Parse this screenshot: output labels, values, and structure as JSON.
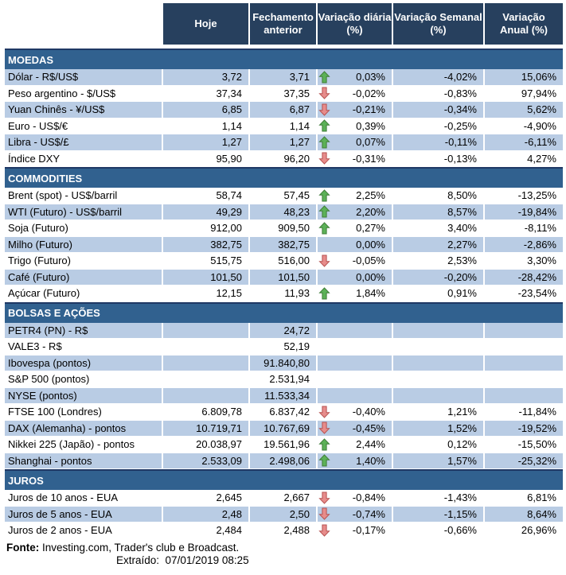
{
  "table": {
    "columns": [
      "Hoje",
      "Fechamento\nanterior",
      "Variação diária\n(%)",
      "Variação Semanal\n(%)",
      "Variação\nAnual (%)"
    ]
  },
  "sections": [
    {
      "title": "MOEDAS",
      "zebra": 0,
      "rows": [
        {
          "label": "Dólar - R$/US$",
          "hoje": "3,72",
          "fechamento": "3,71",
          "arrow": "up",
          "diaria": "0,03%",
          "semanal": "-4,02%",
          "anual": "15,06%"
        },
        {
          "label": "Peso argentino - $/US$",
          "hoje": "37,34",
          "fechamento": "37,35",
          "arrow": "down",
          "diaria": "-0,02%",
          "semanal": "-0,83%",
          "anual": "97,94%"
        },
        {
          "label": "Yuan Chinês - ¥/US$",
          "hoje": "6,85",
          "fechamento": "6,87",
          "arrow": "down",
          "diaria": "-0,21%",
          "semanal": "-0,34%",
          "anual": "5,62%"
        },
        {
          "label": "Euro - US$/€",
          "hoje": "1,14",
          "fechamento": "1,14",
          "arrow": "up",
          "diaria": "0,39%",
          "semanal": "-0,25%",
          "anual": "-4,90%"
        },
        {
          "label": "Libra - US$/£",
          "hoje": "1,27",
          "fechamento": "1,27",
          "arrow": "up",
          "diaria": "0,07%",
          "semanal": "-0,11%",
          "anual": "-6,11%"
        },
        {
          "label": "Índice DXY",
          "hoje": "95,90",
          "fechamento": "96,20",
          "arrow": "down",
          "diaria": "-0,31%",
          "semanal": "-0,13%",
          "anual": "4,27%"
        }
      ]
    },
    {
      "title": "COMMODITIES",
      "zebra": 1,
      "rows": [
        {
          "label": "Brent (spot) - US$/barril",
          "hoje": "58,74",
          "fechamento": "57,45",
          "arrow": "up",
          "diaria": "2,25%",
          "semanal": "8,50%",
          "anual": "-13,25%"
        },
        {
          "label": "WTI (Futuro) - US$/barril",
          "hoje": "49,29",
          "fechamento": "48,23",
          "arrow": "up",
          "diaria": "2,20%",
          "semanal": "8,57%",
          "anual": "-19,84%"
        },
        {
          "label": "Soja (Futuro)",
          "hoje": "912,00",
          "fechamento": "909,50",
          "arrow": "up",
          "diaria": "0,27%",
          "semanal": "3,40%",
          "anual": "-8,11%"
        },
        {
          "label": "Milho (Futuro)",
          "hoje": "382,75",
          "fechamento": "382,75",
          "arrow": "",
          "diaria": "0,00%",
          "semanal": "2,27%",
          "anual": "-2,86%"
        },
        {
          "label": "Trigo (Futuro)",
          "hoje": "515,75",
          "fechamento": "516,00",
          "arrow": "down",
          "diaria": "-0,05%",
          "semanal": "2,53%",
          "anual": "3,30%"
        },
        {
          "label": "Café (Futuro)",
          "hoje": "101,50",
          "fechamento": "101,50",
          "arrow": "",
          "diaria": "0,00%",
          "semanal": "-0,20%",
          "anual": "-28,42%"
        },
        {
          "label": "Açúcar (Futuro)",
          "hoje": "12,15",
          "fechamento": "11,93",
          "arrow": "up",
          "diaria": "1,84%",
          "semanal": "0,91%",
          "anual": "-23,54%"
        }
      ]
    },
    {
      "title": "BOLSAS E AÇÕES",
      "zebra": 0,
      "rows": [
        {
          "label": "PETR4 (PN) - R$",
          "hoje": "",
          "fechamento": "24,72",
          "arrow": "",
          "diaria": "",
          "semanal": "",
          "anual": ""
        },
        {
          "label": "VALE3 - R$",
          "hoje": "",
          "fechamento": "52,19",
          "arrow": "",
          "diaria": "",
          "semanal": "",
          "anual": ""
        },
        {
          "label": "Ibovespa (pontos)",
          "hoje": "",
          "fechamento": "91.840,80",
          "arrow": "",
          "diaria": "",
          "semanal": "",
          "anual": ""
        },
        {
          "label": "S&P 500 (pontos)",
          "hoje": "",
          "fechamento": "2.531,94",
          "arrow": "",
          "diaria": "",
          "semanal": "",
          "anual": ""
        },
        {
          "label": "NYSE (pontos)",
          "hoje": "",
          "fechamento": "11.533,34",
          "arrow": "",
          "diaria": "",
          "semanal": "",
          "anual": ""
        },
        {
          "label": "FTSE 100 (Londres)",
          "hoje": "6.809,78",
          "fechamento": "6.837,42",
          "arrow": "down",
          "diaria": "-0,40%",
          "semanal": "1,21%",
          "anual": "-11,84%"
        },
        {
          "label": "DAX (Alemanha) - pontos",
          "hoje": "10.719,71",
          "fechamento": "10.767,69",
          "arrow": "down",
          "diaria": "-0,45%",
          "semanal": "1,52%",
          "anual": "-19,52%"
        },
        {
          "label": "Nikkei 225 (Japão) - pontos",
          "hoje": "20.038,97",
          "fechamento": "19.561,96",
          "arrow": "up",
          "diaria": "2,44%",
          "semanal": "0,12%",
          "anual": "-15,50%"
        },
        {
          "label": "Shanghai - pontos",
          "hoje": "2.533,09",
          "fechamento": "2.498,06",
          "arrow": "up",
          "diaria": "1,40%",
          "semanal": "1,57%",
          "anual": "-25,32%"
        }
      ]
    },
    {
      "title": "JUROS",
      "zebra": 1,
      "rows": [
        {
          "label": "Juros de 10 anos - EUA",
          "hoje": "2,645",
          "fechamento": "2,667",
          "arrow": "down",
          "diaria": "-0,84%",
          "semanal": "-1,43%",
          "anual": "6,81%"
        },
        {
          "label": "Juros de 5 anos - EUA",
          "hoje": "2,48",
          "fechamento": "2,50",
          "arrow": "down",
          "diaria": "-0,74%",
          "semanal": "-1,15%",
          "anual": "8,64%"
        },
        {
          "label": "Juros de 2 anos - EUA",
          "hoje": "2,484",
          "fechamento": "2,488",
          "arrow": "down",
          "diaria": "-0,17%",
          "semanal": "-0,66%",
          "anual": "26,96%"
        }
      ]
    }
  ],
  "footer": {
    "fonte_label": "Fonte:",
    "fonte_text": "Investing.com, Trader's club e Broadcast.",
    "extraido_label": "Extraído:",
    "extraido_value": "07/01/2019 08:25"
  },
  "colors": {
    "header_bg": "#27405E",
    "section_bg": "#31618F",
    "section_border": "#1F3864",
    "row_shaded": "#B9CCE4",
    "arrow_up_fill": "#5CB157",
    "arrow_up_stroke": "#3F7D38",
    "arrow_down_fill": "#E78C8B",
    "arrow_down_stroke": "#B65251"
  }
}
